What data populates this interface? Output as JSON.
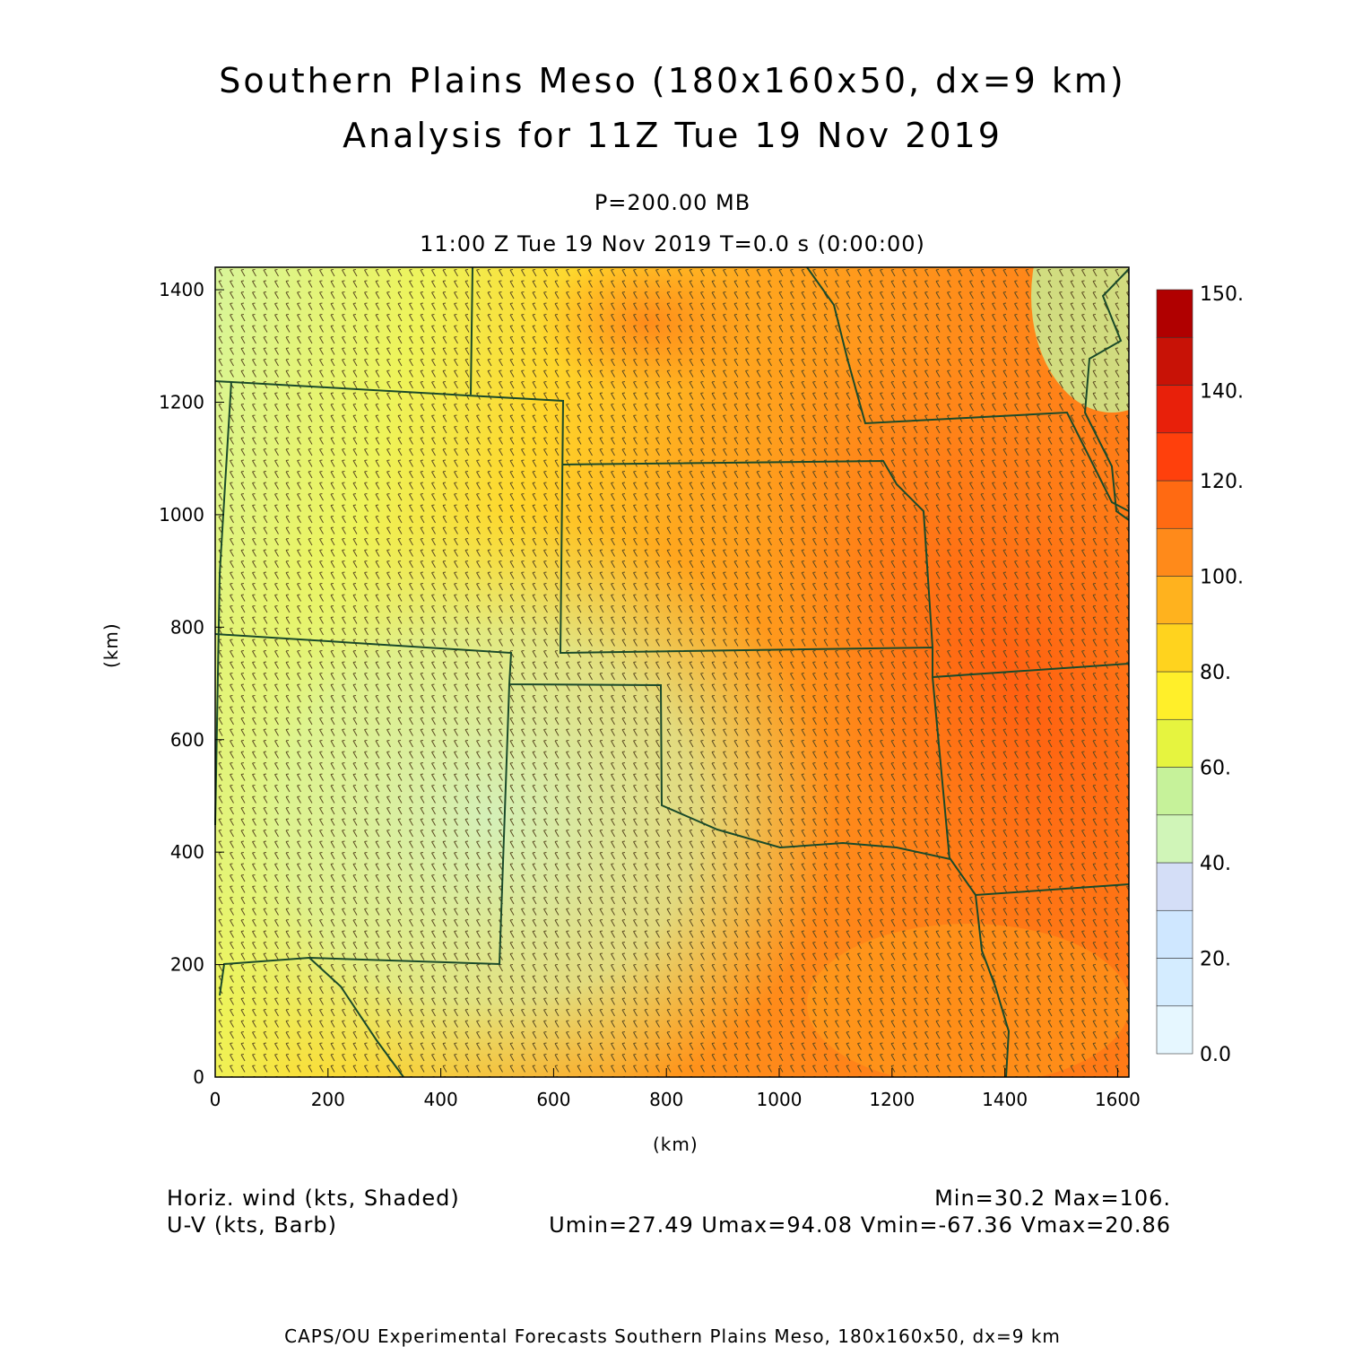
{
  "title": {
    "line1": "Southern Plains Meso (180x160x50, dx=9 km)",
    "line2": "Analysis for 11Z Tue 19 Nov 2019"
  },
  "subtitle": {
    "level": "P=200.00 MB",
    "time": "11:00 Z Tue 19 Nov 2019    T=0.0 s (0:00:00)"
  },
  "axes": {
    "x_label": "(km)",
    "y_label": "(km)",
    "x_ticks": [
      "0",
      "200",
      "400",
      "600",
      "800",
      "1000",
      "1200",
      "1400",
      "1600"
    ],
    "y_ticks": [
      "0",
      "200",
      "400",
      "600",
      "800",
      "1000",
      "1200",
      "1400"
    ]
  },
  "colorbar": {
    "labels": [
      "0.0",
      "20.",
      "40.",
      "60.",
      "80.",
      "100.",
      "120.",
      "140.",
      "150."
    ],
    "colors": [
      "#e6f7ff",
      "#d4ecff",
      "#cfe7ff",
      "#d4def7",
      "#d0f5b8",
      "#c6f29a",
      "#e6f43f",
      "#ffef2a",
      "#ffd31e",
      "#ffb21e",
      "#ff8a1a",
      "#ff6a12",
      "#ff400c",
      "#e8200a",
      "#c81206",
      "#b00000"
    ]
  },
  "legend": {
    "left1": "Horiz. wind (kts, Shaded)",
    "left2": "U-V (kts, Barb)",
    "right1": "Min=30.2  Max=106.",
    "right2": "Umin=27.49  Umax=94.08  Vmin=-67.36  Vmax=20.86"
  },
  "footer": "CAPS/OU Experimental Forecasts  Southern Plains Meso, 180x160x50, dx=9 km"
}
